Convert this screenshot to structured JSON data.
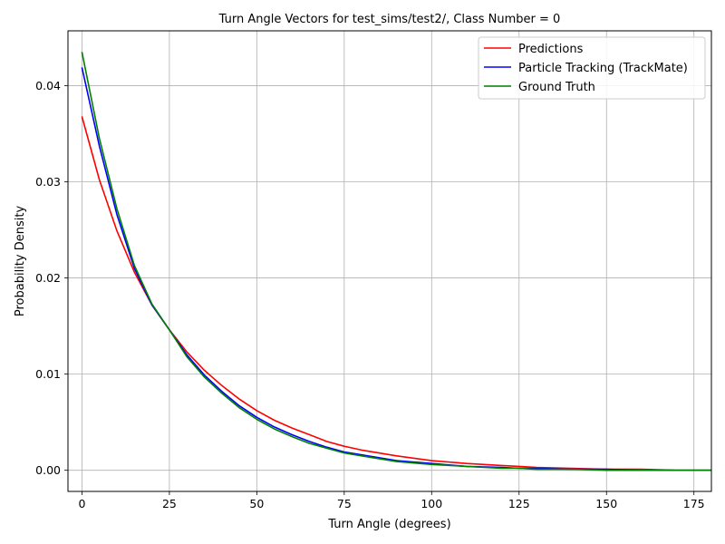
{
  "chart_data": {
    "type": "line",
    "title": "Turn Angle Vectors for test_sims/test2/, Class Number = 0",
    "xlabel": "Turn Angle (degrees)",
    "ylabel": "Probability Density",
    "xlim": [
      -4,
      180
    ],
    "ylim": [
      -0.0022,
      0.0457
    ],
    "xticks": [
      0,
      25,
      50,
      75,
      100,
      125,
      150,
      175
    ],
    "xtick_labels": [
      "0",
      "25",
      "50",
      "75",
      "100",
      "125",
      "150",
      "175"
    ],
    "yticks": [
      0.0,
      0.01,
      0.02,
      0.03,
      0.04
    ],
    "ytick_labels": [
      "0.00",
      "0.01",
      "0.02",
      "0.03",
      "0.04"
    ],
    "grid": true,
    "legend_position": "top-right",
    "series": [
      {
        "name": "Predictions",
        "color": "#ff0000",
        "x": [
          0,
          5,
          10,
          15,
          20,
          25,
          30,
          35,
          40,
          45,
          50,
          55,
          60,
          65,
          70,
          75,
          80,
          90,
          100,
          110,
          120,
          125,
          130,
          140,
          150,
          160,
          170,
          180
        ],
        "y": [
          0.0368,
          0.0302,
          0.0249,
          0.0206,
          0.0172,
          0.0146,
          0.0123,
          0.0104,
          0.0088,
          0.0074,
          0.0062,
          0.0052,
          0.0044,
          0.0037,
          0.003,
          0.0025,
          0.0021,
          0.0015,
          0.001,
          0.0007,
          0.0005,
          0.0004,
          0.0003,
          0.0002,
          0.0001,
          0.0001,
          0.0,
          0.0
        ]
      },
      {
        "name": "Particle Tracking (TrackMate)",
        "color": "#0000ff",
        "x": [
          0,
          5,
          10,
          15,
          20,
          25,
          30,
          35,
          40,
          45,
          50,
          55,
          60,
          65,
          70,
          75,
          80,
          90,
          100,
          110,
          120,
          125,
          130,
          140,
          150,
          160,
          170,
          180
        ],
        "y": [
          0.0419,
          0.0337,
          0.0266,
          0.021,
          0.0172,
          0.0146,
          0.012,
          0.0099,
          0.0082,
          0.0067,
          0.0055,
          0.0045,
          0.0037,
          0.003,
          0.0024,
          0.0019,
          0.0016,
          0.001,
          0.0007,
          0.0004,
          0.0003,
          0.0002,
          0.0002,
          0.0001,
          0.0001,
          0.0,
          0.0,
          0.0
        ]
      },
      {
        "name": "Ground Truth",
        "color": "#008000",
        "x": [
          0,
          5,
          10,
          15,
          20,
          25,
          30,
          35,
          40,
          45,
          50,
          55,
          60,
          65,
          70,
          75,
          80,
          90,
          100,
          110,
          120,
          125,
          130,
          140,
          150,
          160,
          170,
          180
        ],
        "y": [
          0.0435,
          0.0345,
          0.0272,
          0.0213,
          0.0173,
          0.0146,
          0.0118,
          0.0097,
          0.008,
          0.0065,
          0.0053,
          0.0043,
          0.0035,
          0.0028,
          0.0023,
          0.0018,
          0.0015,
          0.0009,
          0.0006,
          0.0004,
          0.0002,
          0.0002,
          0.0001,
          0.0001,
          0.0,
          0.0,
          0.0,
          0.0
        ]
      }
    ]
  }
}
